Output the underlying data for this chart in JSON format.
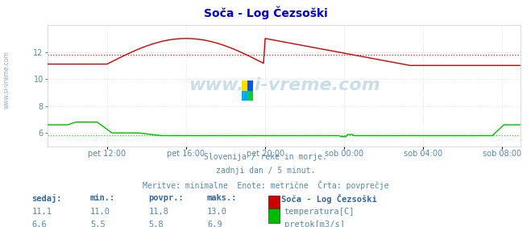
{
  "title": "Soča - Log Čezsoški",
  "background_color": "#ffffff",
  "plot_bg_color": "#ffffff",
  "title_color": "#0000cc",
  "text_color": "#5588aa",
  "label_color": "#5588aa",
  "bold_label_color": "#336699",
  "xlabel_ticks": [
    "pet 12:00",
    "pet 16:00",
    "pet 20:00",
    "sob 00:00",
    "sob 04:00",
    "sob 08:00"
  ],
  "ylabel_min": 5.0,
  "ylabel_max": 14.0,
  "yticks": [
    6,
    8,
    10,
    12
  ],
  "temp_avg": 11.8,
  "flow_avg": 5.8,
  "temp_color": "#cc0000",
  "flow_color": "#00bb00",
  "watermark": "www.si-vreme.com",
  "watermark_color": "#aaccdd",
  "side_text": "www.si-vreme.com",
  "footer_line1": "Slovenija / reke in morje.",
  "footer_line2": "zadnji dan / 5 minut.",
  "footer_line3": "Meritve: minimalne  Enote: metrične  Črta: povprečje",
  "legend_title": "Soča - Log Čezsoški",
  "legend_items": [
    "temperatura[C]",
    "pretok[m3/s]"
  ],
  "legend_colors": [
    "#cc0000",
    "#00bb00"
  ],
  "table_headers": [
    "sedaj:",
    "min.:",
    "povpr.:",
    "maks.:"
  ],
  "table_temp": [
    "11,1",
    "11,0",
    "11,8",
    "13,0"
  ],
  "table_flow": [
    "6,6",
    "5,5",
    "5,8",
    "6,9"
  ],
  "n_points": 288,
  "tick_positions": [
    36,
    84,
    132,
    180,
    228,
    276
  ]
}
